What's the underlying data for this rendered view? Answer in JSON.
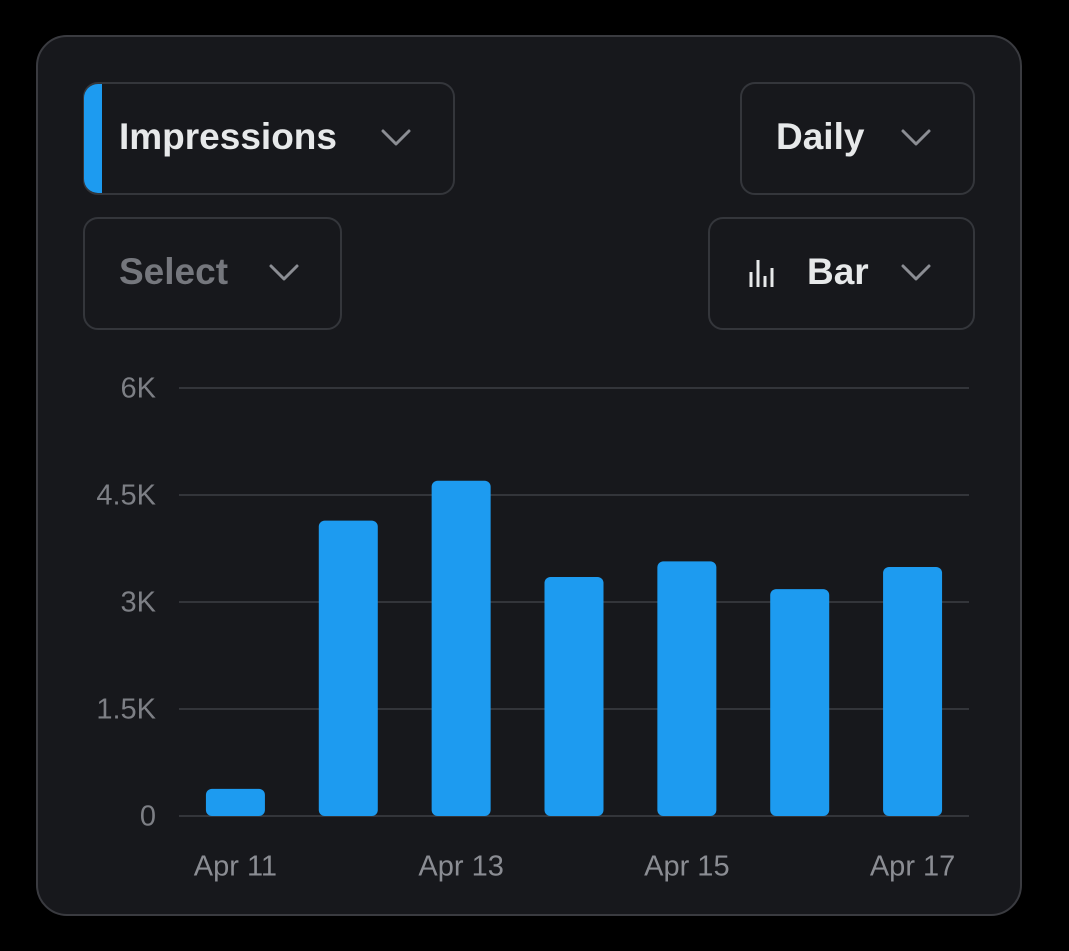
{
  "controls": {
    "metric": "Impressions",
    "period": "Daily",
    "compare": "Select",
    "chart_style": "Bar"
  },
  "chart_data": {
    "type": "bar",
    "categories": [
      "Apr 11",
      null,
      "Apr 13",
      null,
      "Apr 15",
      null,
      "Apr 17"
    ],
    "values": [
      380,
      4140,
      4700,
      3350,
      3570,
      3180,
      3490
    ],
    "color": "#1d9bf0",
    "ylim": [
      0,
      6000
    ],
    "yticks": [
      0,
      {
        "value": 1500,
        "label": "1.5K"
      },
      {
        "value": 3000,
        "label": "3K"
      },
      {
        "value": 4500,
        "label": "4.5K"
      },
      {
        "value": 6000,
        "label": "6K"
      }
    ],
    "grid": true
  }
}
